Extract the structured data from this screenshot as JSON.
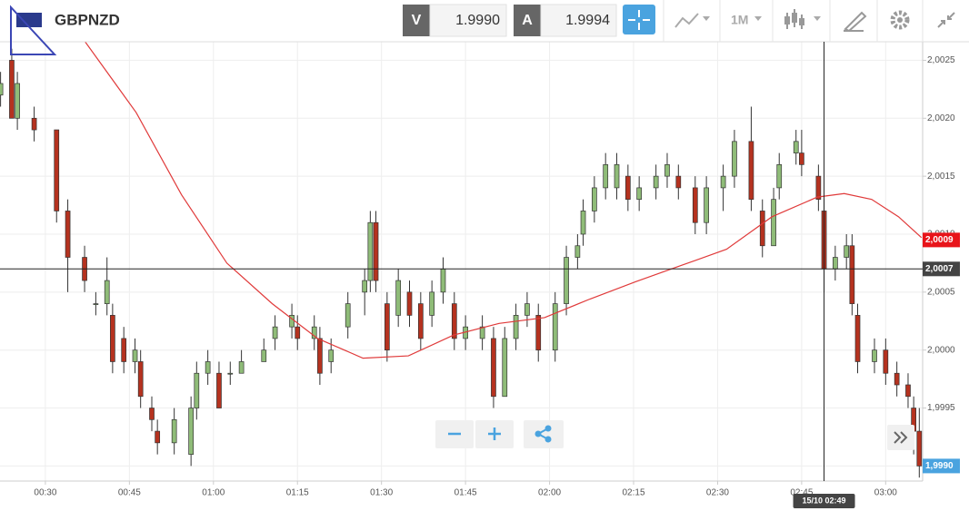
{
  "toolbar": {
    "symbol": "GBPNZD",
    "bid_label": "V",
    "bid": "1.9990",
    "ask_label": "A",
    "ask": "1.9994",
    "timeframe": "1M"
  },
  "chart_data": {
    "type": "candlestick",
    "xlim": [
      21.9,
      186.6
    ],
    "xticks": [
      {
        "value": 30,
        "label": "00:30"
      },
      {
        "value": 45,
        "label": "00:45"
      },
      {
        "value": 60,
        "label": "01:00"
      },
      {
        "value": 75,
        "label": "01:15"
      },
      {
        "value": 90,
        "label": "01:30"
      },
      {
        "value": 105,
        "label": "01:45"
      },
      {
        "value": 120,
        "label": "02:00"
      },
      {
        "value": 135,
        "label": "02:15"
      },
      {
        "value": 150,
        "label": "02:30"
      },
      {
        "value": 165,
        "label": "02:45"
      },
      {
        "value": 180,
        "label": "03:00"
      }
    ],
    "ylim": [
      1.99887,
      2.00266
    ],
    "yticks": [
      {
        "value": 1.999,
        "label": "1,9990"
      },
      {
        "value": 1.9995,
        "label": "1,9995"
      },
      {
        "value": 2.0,
        "label": "2,0000"
      },
      {
        "value": 2.0005,
        "label": "2,0005"
      },
      {
        "value": 2.001,
        "label": "2,0010"
      },
      {
        "value": 2.0015,
        "label": "2,0015"
      },
      {
        "value": 2.002,
        "label": "2,0020"
      },
      {
        "value": 2.0025,
        "label": "2,0025"
      }
    ],
    "grid": true,
    "up_color": "#8fbc78",
    "down_color": "#b5321f",
    "candles": {
      "x": [
        22,
        24,
        25,
        28,
        32,
        34,
        37,
        39,
        41,
        42,
        44,
        46,
        47,
        49,
        50,
        53,
        56,
        57,
        59,
        61,
        63,
        65,
        69,
        71,
        74,
        75,
        78,
        79,
        81,
        84,
        87,
        88,
        89,
        91,
        93,
        95,
        97,
        99,
        101,
        103,
        105,
        108,
        110,
        112,
        114,
        116,
        118,
        121,
        123,
        125,
        126,
        128,
        130,
        132,
        134,
        136,
        139,
        141,
        143,
        146,
        148,
        151,
        153,
        156,
        158,
        160,
        161,
        164,
        165,
        168,
        169,
        171,
        173,
        174,
        175,
        178,
        180,
        182,
        184,
        185,
        186
      ],
      "open": [
        2.0022,
        2.0025,
        2.002,
        2.002,
        2.0019,
        2.0012,
        2.0008,
        2.0004,
        2.0004,
        2.0003,
        2.0001,
        1.9999,
        1.9999,
        1.9995,
        1.9993,
        1.9992,
        1.9991,
        1.9995,
        1.9998,
        1.9998,
        1.9998,
        1.9998,
        1.9999,
        2.0001,
        2.0002,
        2.0002,
        2.0001,
        2.0001,
        1.9999,
        2.0002,
        2.0005,
        2.0006,
        2.0011,
        2.0004,
        2.0003,
        2.0005,
        2.0004,
        2.0003,
        2.0005,
        2.0004,
        2.0001,
        2.0001,
        2.0001,
        1.9996,
        2.0001,
        2.0003,
        2.0003,
        2.0,
        2.0004,
        2.0008,
        2.001,
        2.0012,
        2.0014,
        2.0014,
        2.0015,
        2.0013,
        2.0014,
        2.0015,
        2.0015,
        2.0014,
        2.0011,
        2.0014,
        2.0015,
        2.0018,
        2.0012,
        2.0009,
        2.0014,
        2.0017,
        2.0017,
        2.0015,
        2.0012,
        2.0007,
        2.0008,
        2.0009,
        2.0003,
        1.9999,
        2.0,
        1.9998,
        1.9997,
        1.9995,
        1.9993
      ],
      "high": [
        2.0024,
        2.0026,
        2.0024,
        2.0021,
        2.0019,
        2.0013,
        2.0009,
        2.0005,
        2.0008,
        2.0004,
        2.0002,
        2.0001,
        2.0,
        1.9996,
        1.9994,
        1.9995,
        1.9996,
        1.9999,
        2.0,
        1.9999,
        1.9999,
        2.0,
        2.0001,
        2.0003,
        2.0004,
        2.0003,
        2.0003,
        2.0002,
        2.0001,
        2.0005,
        2.0007,
        2.0012,
        2.0012,
        2.0005,
        2.0007,
        2.0006,
        2.0005,
        2.0006,
        2.0008,
        2.0005,
        2.0003,
        2.0003,
        2.0002,
        2.0002,
        2.0004,
        2.0005,
        2.0004,
        2.0005,
        2.0009,
        2.001,
        2.0013,
        2.0015,
        2.0017,
        2.0017,
        2.0016,
        2.0015,
        2.0016,
        2.0017,
        2.0016,
        2.0015,
        2.0015,
        2.0016,
        2.0019,
        2.0021,
        2.0013,
        2.0014,
        2.0017,
        2.0019,
        2.0019,
        2.0016,
        2.0013,
        2.0009,
        2.001,
        2.001,
        2.0004,
        2.0001,
        2.0001,
        1.9999,
        1.9998,
        1.9996,
        1.9995
      ],
      "low": [
        2.0021,
        2.002,
        2.0019,
        2.0018,
        2.0011,
        2.0005,
        2.0005,
        2.0003,
        2.0003,
        1.9998,
        1.9998,
        1.9998,
        1.9995,
        1.9993,
        1.9991,
        1.9991,
        1.999,
        1.9994,
        1.9997,
        1.9995,
        1.9997,
        1.9998,
        1.9999,
        2.0,
        2.0001,
        2.0,
        2.0,
        1.9997,
        1.9998,
        2.0001,
        2.0003,
        2.0005,
        2.0005,
        1.9999,
        2.0002,
        2.0002,
        2.0,
        2.0002,
        2.0004,
        2.0,
        2.0,
        2.0,
        1.9995,
        1.9996,
        2.0,
        2.0002,
        1.9999,
        1.9999,
        2.0003,
        2.0007,
        2.0009,
        2.0011,
        2.0013,
        2.0013,
        2.0012,
        2.0012,
        2.0013,
        2.0014,
        2.0013,
        2.001,
        2.001,
        2.0012,
        2.0014,
        2.0012,
        2.0008,
        2.0009,
        2.0013,
        2.0016,
        2.0015,
        2.0012,
        2.0005,
        2.0006,
        2.0007,
        2.0003,
        1.9998,
        1.9998,
        1.9997,
        1.9996,
        1.9995,
        1.9991,
        1.9989
      ],
      "close": [
        2.0023,
        2.002,
        2.0023,
        2.0019,
        2.0012,
        2.0008,
        2.0006,
        2.0004,
        2.0006,
        1.9999,
        1.9999,
        2.0,
        1.9996,
        1.9994,
        1.9992,
        1.9994,
        1.9995,
        1.9998,
        1.9999,
        1.9995,
        1.9998,
        1.9999,
        2.0,
        2.0002,
        2.0003,
        2.0001,
        2.0002,
        1.9998,
        2.0,
        2.0004,
        2.0006,
        2.0011,
        2.0006,
        2.0,
        2.0006,
        2.0003,
        2.0001,
        2.0005,
        2.0007,
        2.0001,
        2.0002,
        2.0002,
        1.9996,
        2.0001,
        2.0003,
        2.0004,
        2.0,
        2.0004,
        2.0008,
        2.0009,
        2.0012,
        2.0014,
        2.0016,
        2.0016,
        2.0013,
        2.0014,
        2.0015,
        2.0016,
        2.0014,
        2.0011,
        2.0014,
        2.0015,
        2.0018,
        2.0013,
        2.0009,
        2.0013,
        2.0016,
        2.0018,
        2.0016,
        2.0013,
        2.0007,
        2.0008,
        2.0009,
        2.0004,
        1.9999,
        2.0,
        1.9998,
        1.9997,
        1.9996,
        1.9993,
        1.999
      ]
    },
    "series": [
      {
        "type": "line",
        "color": "#e03a3a",
        "x": [
          36.5,
          46.2,
          54.3,
          62.4,
          70.5,
          78.6,
          86.7,
          94.8,
          102.9,
          111,
          119.1,
          127.2,
          135.4,
          143.5,
          151.6,
          159.7,
          167.8,
          172.6,
          177.5,
          182.3,
          186.4
        ],
        "values": [
          2.0027,
          2.00205,
          2.00134,
          2.00075,
          2.0004,
          2.0001,
          1.99993,
          1.99995,
          2.00013,
          2.00023,
          2.00028,
          2.00044,
          2.00059,
          2.00073,
          2.00087,
          2.00115,
          2.00132,
          2.00135,
          2.0013,
          2.00115,
          2.00097
        ]
      }
    ],
    "crosshair": {
      "x": {
        "value": 169,
        "label": "15/10 02:49"
      },
      "y": {
        "value": 2.0007,
        "label": "2,0007"
      }
    },
    "price_labels": [
      {
        "value": 2.00095,
        "label": "2,0009",
        "color": "#e8141a"
      },
      {
        "value": 1.999,
        "label": "1,9990",
        "color": "#4aa3df"
      }
    ]
  }
}
